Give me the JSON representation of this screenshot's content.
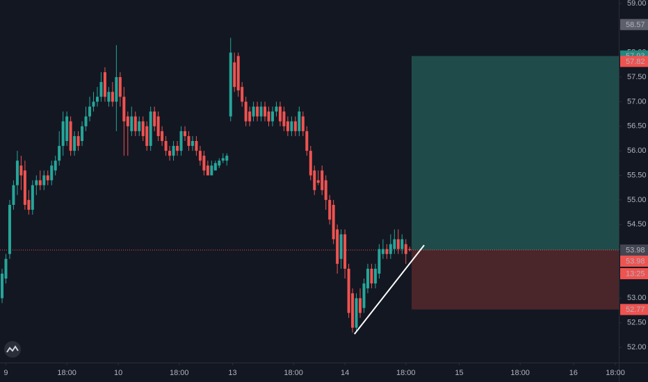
{
  "chart_data": {
    "type": "candlestick",
    "up_color": "#26a69a",
    "down_color": "#ef5350",
    "xlim": [
      -0.55,
      161.9
    ],
    "ylim": [
      51.69,
      59.07
    ],
    "grid": false,
    "xticks": [
      {
        "value": 1,
        "label": "9"
      },
      {
        "value": 17,
        "label": "18:00"
      },
      {
        "value": 30.5,
        "label": "10"
      },
      {
        "value": 46.5,
        "label": "18:00"
      },
      {
        "value": 60.5,
        "label": "13"
      },
      {
        "value": 76.5,
        "label": "18:00"
      },
      {
        "value": 90,
        "label": "14"
      },
      {
        "value": 106,
        "label": "18:00"
      },
      {
        "value": 120,
        "label": "15"
      },
      {
        "value": 136,
        "label": "18:00"
      },
      {
        "value": 150,
        "label": "16"
      },
      {
        "value": 161,
        "label": "18:00"
      }
    ],
    "yticks": [
      {
        "value": 52,
        "label": "52.00"
      },
      {
        "value": 52.5,
        "label": "52.50"
      },
      {
        "value": 53,
        "label": "53.00"
      },
      {
        "value": 53.5,
        "label": "53.50"
      },
      {
        "value": 54,
        "label": "54.00"
      },
      {
        "value": 54.5,
        "label": "54.50"
      },
      {
        "value": 55,
        "label": "55.00"
      },
      {
        "value": 55.5,
        "label": "55.50"
      },
      {
        "value": 56,
        "label": "56.00"
      },
      {
        "value": 56.5,
        "label": "56.50"
      },
      {
        "value": 57,
        "label": "57.00"
      },
      {
        "value": 57.5,
        "label": "57.50"
      },
      {
        "value": 58,
        "label": "58.00"
      },
      {
        "value": 58.5,
        "label": "58.50"
      },
      {
        "value": 59,
        "label": "59.00"
      }
    ],
    "ohlc": [
      [
        53.0,
        53.6,
        52.9,
        53.5
      ],
      [
        53.4,
        53.9,
        53.3,
        53.8
      ],
      [
        53.9,
        55.0,
        53.8,
        54.9
      ],
      [
        54.9,
        55.4,
        54.8,
        55.3
      ],
      [
        55.3,
        56.0,
        55.1,
        55.8
      ],
      [
        55.7,
        55.9,
        55.2,
        55.5
      ],
      [
        55.6,
        55.8,
        54.8,
        54.9
      ],
      [
        55.0,
        55.2,
        54.7,
        54.8
      ],
      [
        54.8,
        55.4,
        54.7,
        55.3
      ],
      [
        55.3,
        55.5,
        55.1,
        55.4
      ],
      [
        55.4,
        55.6,
        55.2,
        55.3
      ],
      [
        55.3,
        55.6,
        55.2,
        55.5
      ],
      [
        55.5,
        55.6,
        55.3,
        55.4
      ],
      [
        55.4,
        55.8,
        55.3,
        55.7
      ],
      [
        55.6,
        55.9,
        55.5,
        55.8
      ],
      [
        55.8,
        56.4,
        55.7,
        56.1
      ],
      [
        56.1,
        56.8,
        55.9,
        56.6
      ],
      [
        56.2,
        56.8,
        56.1,
        56.7
      ],
      [
        56.6,
        56.7,
        55.9,
        56.0
      ],
      [
        56.0,
        56.4,
        55.9,
        56.3
      ],
      [
        56.3,
        56.4,
        56.0,
        56.1
      ],
      [
        56.2,
        56.6,
        56.1,
        56.5
      ],
      [
        56.5,
        56.9,
        56.4,
        56.7
      ],
      [
        56.7,
        57.1,
        56.6,
        56.9
      ],
      [
        56.9,
        57.2,
        56.8,
        57.0
      ],
      [
        57.0,
        57.3,
        56.9,
        57.1
      ],
      [
        57.1,
        57.6,
        57.0,
        57.4
      ],
      [
        57.6,
        57.7,
        57.0,
        57.1
      ],
      [
        57.0,
        57.3,
        56.9,
        57.2
      ],
      [
        57.2,
        57.4,
        56.9,
        57.0
      ],
      [
        57.0,
        58.15,
        56.4,
        57.5
      ],
      [
        57.5,
        57.6,
        56.9,
        57.1
      ],
      [
        57.1,
        57.3,
        55.9,
        56.6
      ],
      [
        56.7,
        56.8,
        55.9,
        56.5
      ],
      [
        56.4,
        56.9,
        56.3,
        56.7
      ],
      [
        56.7,
        56.8,
        56.3,
        56.4
      ],
      [
        56.4,
        56.7,
        56.3,
        56.6
      ],
      [
        56.6,
        56.7,
        56.2,
        56.3
      ],
      [
        56.5,
        56.6,
        56.0,
        56.1
      ],
      [
        56.1,
        56.9,
        56.0,
        56.8
      ],
      [
        56.8,
        56.9,
        56.4,
        56.5
      ],
      [
        56.7,
        56.8,
        56.2,
        56.3
      ],
      [
        56.4,
        56.5,
        56.1,
        56.2
      ],
      [
        56.2,
        56.3,
        55.9,
        56.0
      ],
      [
        56.0,
        56.1,
        55.8,
        55.9
      ],
      [
        55.9,
        56.2,
        55.8,
        56.1
      ],
      [
        56.1,
        56.2,
        55.9,
        56.0
      ],
      [
        56.0,
        56.5,
        55.9,
        56.4
      ],
      [
        56.4,
        56.5,
        56.2,
        56.3
      ],
      [
        56.3,
        56.4,
        56.0,
        56.1
      ],
      [
        56.1,
        56.3,
        56.0,
        56.2
      ],
      [
        56.2,
        56.3,
        55.9,
        56.0
      ],
      [
        56.0,
        56.1,
        55.7,
        55.8
      ],
      [
        55.9,
        56.0,
        55.5,
        55.6
      ],
      [
        55.7,
        55.8,
        55.5,
        55.5
      ],
      [
        55.5,
        55.8,
        55.5,
        55.7
      ],
      [
        55.6,
        55.8,
        55.6,
        55.75
      ],
      [
        55.7,
        55.85,
        55.65,
        55.8
      ],
      [
        55.8,
        55.95,
        55.75,
        55.85
      ],
      [
        55.8,
        55.95,
        55.7,
        55.9
      ],
      [
        56.7,
        58.3,
        56.6,
        58.0
      ],
      [
        57.8,
        58.0,
        57.2,
        57.3
      ],
      [
        57.93,
        58.0,
        57.1,
        57.23
      ],
      [
        57.3,
        57.4,
        56.9,
        57.0
      ],
      [
        57.0,
        57.1,
        56.5,
        56.6
      ],
      [
        56.8,
        56.9,
        56.5,
        56.6
      ],
      [
        56.7,
        57.0,
        56.6,
        56.9
      ],
      [
        56.9,
        57.0,
        56.6,
        56.7
      ],
      [
        56.7,
        57.0,
        56.6,
        56.9
      ],
      [
        56.9,
        57.0,
        56.6,
        56.7
      ],
      [
        56.8,
        56.9,
        56.5,
        56.6
      ],
      [
        56.6,
        56.9,
        56.5,
        56.8
      ],
      [
        56.8,
        57.0,
        56.7,
        56.9
      ],
      [
        56.9,
        57.0,
        56.5,
        56.6
      ],
      [
        56.8,
        56.9,
        56.4,
        56.5
      ],
      [
        56.6,
        56.7,
        56.3,
        56.4
      ],
      [
        56.4,
        56.7,
        56.3,
        56.6
      ],
      [
        56.6,
        56.7,
        56.3,
        56.4
      ],
      [
        56.4,
        56.9,
        56.3,
        56.8
      ],
      [
        56.7,
        56.8,
        56.3,
        56.4
      ],
      [
        56.4,
        56.5,
        55.9,
        56.0
      ],
      [
        56.0,
        56.1,
        55.4,
        55.5
      ],
      [
        55.6,
        55.7,
        55.1,
        55.2
      ],
      [
        55.4,
        55.6,
        55.3,
        55.35
      ],
      [
        55.6,
        55.7,
        55.1,
        55.2
      ],
      [
        55.4,
        55.5,
        54.8,
        55.0
      ],
      [
        55.0,
        55.1,
        54.5,
        54.6
      ],
      [
        54.9,
        55.0,
        54.1,
        54.2
      ],
      [
        54.4,
        54.5,
        53.5,
        53.7
      ],
      [
        53.8,
        54.4,
        53.6,
        54.3
      ],
      [
        54.3,
        54.4,
        53.4,
        53.6
      ],
      [
        53.6,
        53.7,
        52.6,
        52.7
      ],
      [
        53.1,
        53.2,
        52.3,
        52.4
      ],
      [
        52.4,
        53.1,
        52.3,
        53.0
      ],
      [
        53.0,
        53.2,
        52.6,
        52.7
      ],
      [
        52.8,
        53.4,
        52.7,
        53.3
      ],
      [
        53.2,
        53.7,
        53.1,
        53.6
      ],
      [
        53.6,
        53.7,
        53.2,
        53.3
      ],
      [
        53.3,
        53.7,
        53.2,
        53.6
      ],
      [
        53.5,
        54.1,
        53.4,
        54.0
      ],
      [
        53.9,
        54.2,
        53.8,
        54.0
      ],
      [
        54.0,
        54.1,
        53.8,
        53.9
      ],
      [
        53.9,
        54.3,
        53.8,
        54.1
      ],
      [
        54.0,
        54.4,
        53.9,
        54.2
      ],
      [
        54.2,
        54.4,
        53.9,
        54.0
      ],
      [
        54.0,
        54.3,
        53.9,
        54.2
      ],
      [
        54.1,
        54.2,
        53.7,
        53.9
      ],
      [
        54.0,
        54.05,
        53.95,
        53.98
      ]
    ],
    "position": {
      "x_start": 107.5,
      "entry": 53.98,
      "target": 57.93,
      "stop": 52.77,
      "profit_color": "#1f4c4a",
      "loss_color": "#4a2529"
    },
    "trendline": {
      "x": [
        92.5,
        110.8
      ],
      "y": [
        52.27,
        54.08
      ],
      "color": "#ffffff"
    },
    "last_price": {
      "value": 53.98,
      "color": "#ef5350",
      "countdown": "13:25"
    },
    "price_labels": [
      {
        "value": 58.57,
        "color": "#5d606b"
      },
      {
        "value": 57.93,
        "color": "#22877e"
      },
      {
        "value": 57.82,
        "color": "#ef5350"
      },
      {
        "value": 53.98,
        "color": "#434651"
      },
      {
        "value": 52.77,
        "color": "#ef5350"
      }
    ]
  }
}
